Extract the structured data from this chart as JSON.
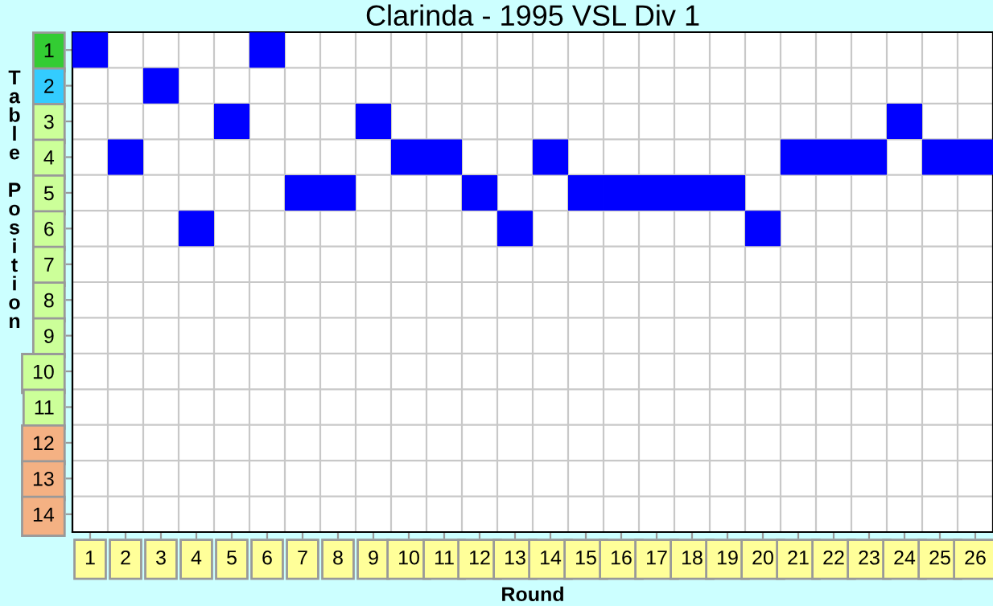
{
  "chart_data": {
    "type": "scatter",
    "title": "Clarinda - 1995 VSL Div 1",
    "xlabel": "Round",
    "ylabel": "Table Position",
    "categories": [
      "1",
      "2",
      "3",
      "4",
      "5",
      "6",
      "7",
      "8",
      "9",
      "10",
      "11",
      "12",
      "13",
      "14",
      "15",
      "16",
      "17",
      "18",
      "19",
      "20",
      "21",
      "22",
      "23",
      "24",
      "25",
      "26"
    ],
    "series": [
      {
        "color": "#0000ff",
        "values": [
          1,
          4,
          2,
          6,
          3,
          1,
          5,
          5,
          3,
          4,
          4,
          5,
          6,
          4,
          5,
          5,
          5,
          5,
          5,
          6,
          4,
          4,
          4,
          3,
          4,
          4
        ]
      }
    ],
    "ylim": [
      14.5,
      0.5
    ],
    "yticks": [
      1,
      2,
      3,
      4,
      5,
      6,
      7,
      8,
      9,
      10,
      11,
      12,
      13,
      14
    ],
    "marker": "square",
    "grid": true,
    "legend": false
  }
}
